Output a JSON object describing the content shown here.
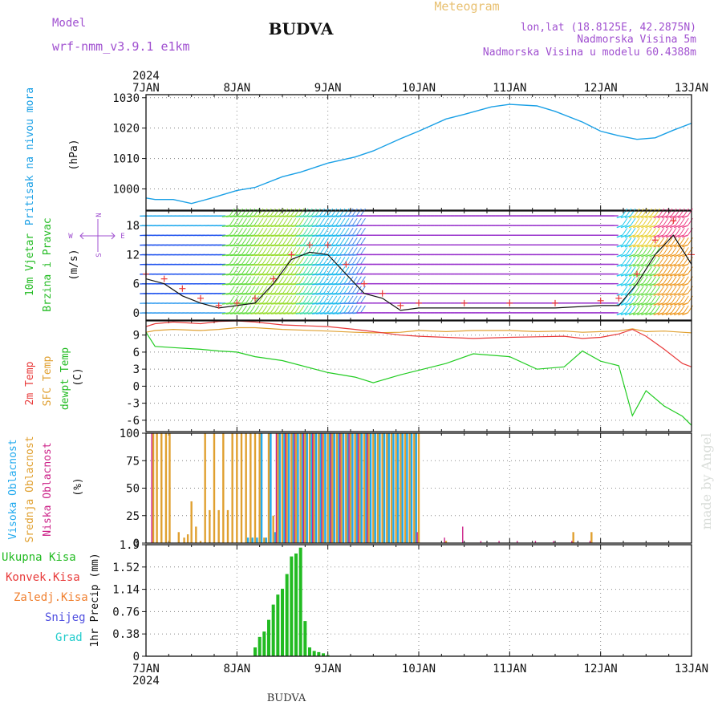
{
  "header": {
    "station": "BUDVA",
    "meteogram": "Meteogram",
    "model_label": "Model",
    "model_name": "wrf-nmm_v3.9.1  e1km",
    "lonlat": "lon,lat (18.8125E, 42.2875N)",
    "altitude": "Nadmorska Visina 5m",
    "model_altitude": "Nadmorska Visina u modelu 60.4388m",
    "footer": "BUDVA",
    "watermark": "made by Angel"
  },
  "colors": {
    "pressure": "#1aa0e6",
    "temp_2m": "#e83a3a",
    "temp_sfc": "#e0a030",
    "dewpoint": "#22cc22",
    "precip_total": "#22bb22",
    "cloud_high": "#22aaee",
    "cloud_mid": "#e0a030",
    "cloud_low": "#cc2288",
    "model_text": "#a050d0",
    "meteogram_text": "#e8c070",
    "wind_speed_line": "#111111",
    "wind_gust_marker": "#e83a3a"
  },
  "chart_data": [
    {
      "type": "line",
      "panel": "pressure",
      "ylabel_main": "Pritisak na nivou mora",
      "ylabel_unit": "(hPa)",
      "ylim": [
        993,
        1031
      ],
      "yticks": [
        1000,
        1010,
        1020,
        1030
      ],
      "x_year": "2024",
      "x_ticks": [
        "7JAN",
        "8JAN",
        "9JAN",
        "10JAN",
        "11JAN",
        "12JAN",
        "13JAN"
      ],
      "x": [
        0,
        0.1,
        0.3,
        0.5,
        0.7,
        1.0,
        1.2,
        1.5,
        1.7,
        2.0,
        2.3,
        2.5,
        2.8,
        3.0,
        3.3,
        3.5,
        3.8,
        4.0,
        4.3,
        4.5,
        4.8,
        5.0,
        5.2,
        5.4,
        5.6,
        5.8,
        6.0
      ],
      "series": [
        {
          "key": "slp",
          "values": [
            997,
            996.5,
            996.5,
            995.2,
            996.8,
            999.5,
            1000.5,
            1004,
            1005.5,
            1008.5,
            1010.5,
            1012.5,
            1016.5,
            1019,
            1023,
            1024.5,
            1027,
            1027.8,
            1027.3,
            1025.5,
            1022,
            1019,
            1017.5,
            1016.3,
            1016.8,
            1019.3,
            1021.6
          ]
        }
      ],
      "grid": true
    },
    {
      "type": "barbs",
      "panel": "wind",
      "ylabel_main": "10m Vjetar",
      "ylabel_sub": "Brzina i Pravac",
      "ylabel_unit": "(m/s)",
      "compass_n": "N",
      "compass_s": "S",
      "compass_w": "W",
      "compass_e": "E",
      "ylim": [
        -1.5,
        21
      ],
      "yticks": [
        0,
        6,
        12,
        18
      ],
      "x": [
        0,
        0.2,
        0.4,
        0.6,
        0.8,
        1.0,
        1.2,
        1.4,
        1.6,
        1.8,
        2.0,
        2.2,
        2.4,
        2.6,
        2.8,
        3.0,
        3.5,
        4.0,
        4.5,
        5.0,
        5.2,
        5.4,
        5.6,
        5.8,
        6.0
      ],
      "series": [
        {
          "key": "speed",
          "values": [
            7,
            6,
            3.5,
            2,
            1,
            1.5,
            2,
            6,
            11,
            12.5,
            12,
            8,
            4,
            3,
            0.5,
            1,
            1,
            1,
            1,
            1.5,
            1.5,
            6,
            12,
            16,
            10
          ]
        },
        {
          "key": "gust",
          "values": [
            8,
            7,
            5,
            3,
            1.5,
            2,
            3,
            7,
            12,
            14,
            14,
            10,
            6,
            4,
            1.5,
            2,
            2,
            2,
            2,
            2.5,
            3,
            8,
            15,
            19,
            12
          ]
        }
      ]
    },
    {
      "type": "line",
      "panel": "temperature",
      "ylabel_2m": "2m Temp",
      "ylabel_sfc": "SFC Temp",
      "ylabel_dew": "dewpt Temp",
      "ylabel_unit": "(C)",
      "ylim": [
        -8,
        11.5
      ],
      "yticks": [
        -6,
        -3,
        0,
        3,
        6,
        9
      ],
      "x": [
        0,
        0.1,
        0.3,
        0.6,
        0.8,
        1.0,
        1.2,
        1.5,
        2.0,
        2.3,
        2.5,
        2.8,
        3.0,
        3.3,
        3.6,
        4.0,
        4.3,
        4.6,
        4.8,
        5.0,
        5.2,
        5.35,
        5.5,
        5.7,
        5.9,
        6.0
      ],
      "series": [
        {
          "key": "t2m",
          "values": [
            10.5,
            11,
            11.3,
            11,
            11.4,
            11.5,
            11.3,
            10.8,
            10.5,
            10,
            9.6,
            9,
            8.8,
            8.6,
            8.4,
            8.6,
            8.7,
            8.8,
            8.4,
            8.6,
            9.2,
            10,
            8.8,
            6.5,
            4,
            3.4
          ]
        },
        {
          "key": "tsfc",
          "values": [
            9.5,
            9.8,
            10,
            9.8,
            10,
            10.3,
            10.3,
            10,
            9.7,
            9.5,
            9.4,
            9.5,
            9.8,
            9.6,
            9.8,
            9.8,
            9.6,
            9.7,
            9.5,
            9.6,
            9.7,
            10.1,
            9.6,
            9.7,
            9.5,
            9.4
          ]
        },
        {
          "key": "dewpt",
          "values": [
            9.5,
            7,
            6.8,
            6.5,
            6.2,
            6,
            5.2,
            4.5,
            2.4,
            1.6,
            0.6,
            2.0,
            2.8,
            4.0,
            5.7,
            5.2,
            3.0,
            3.4,
            6.2,
            4.4,
            3.6,
            -5.2,
            -0.8,
            -3.5,
            -5.3,
            -6.9
          ]
        }
      ],
      "grid": true
    },
    {
      "type": "bar",
      "panel": "clouds",
      "ylabel_high": "Visoka Oblacnost",
      "ylabel_mid": "Srednja Oblacnost",
      "ylabel_low": "Niska Oblacnost",
      "ylabel_unit": "(%)",
      "ylim": [
        0,
        100
      ],
      "yticks": [
        0,
        25,
        50,
        75,
        100
      ],
      "x": [
        0.08,
        0.12,
        0.17,
        0.22,
        0.26,
        0.36,
        0.42,
        0.46,
        0.5,
        0.55,
        0.6,
        0.65,
        0.7,
        0.75,
        0.8,
        0.85,
        0.9,
        0.95,
        1.0,
        1.05,
        1.1,
        1.15,
        1.2,
        1.25,
        1.3,
        1.35,
        1.4,
        1.45,
        1.5,
        1.55,
        1.6,
        1.65,
        1.7,
        1.75,
        1.8,
        1.85,
        1.9,
        1.95,
        2.0,
        2.05,
        2.1,
        2.15,
        2.2,
        2.25,
        2.3,
        2.35,
        2.4,
        2.45,
        2.5,
        2.55,
        2.6,
        2.65,
        2.7,
        2.75,
        2.8,
        2.85,
        2.9,
        2.95,
        3.0,
        3.3,
        3.5,
        3.7,
        3.9,
        4.1,
        4.3,
        4.5,
        4.7,
        4.9,
        5.0
      ],
      "series": [
        {
          "key": "mid",
          "values": [
            100,
            100,
            100,
            100,
            100,
            10,
            5,
            8,
            38,
            15,
            2,
            100,
            30,
            100,
            30,
            100,
            30,
            100,
            100,
            100,
            100,
            100,
            100,
            100,
            5,
            100,
            25,
            100,
            100,
            100,
            100,
            100,
            100,
            100,
            100,
            100,
            100,
            100,
            100,
            100,
            100,
            100,
            100,
            100,
            100,
            100,
            100,
            100,
            100,
            100,
            100,
            100,
            100,
            100,
            100,
            100,
            100,
            100,
            100,
            2,
            0,
            0,
            0,
            0,
            0,
            0,
            10,
            10,
            0
          ]
        },
        {
          "key": "high",
          "values": [
            0,
            0,
            0,
            0,
            0,
            0,
            0,
            0,
            0,
            0,
            0,
            0,
            0,
            0,
            0,
            0,
            0,
            0,
            0,
            0,
            5,
            5,
            5,
            100,
            5,
            100,
            10,
            100,
            100,
            100,
            100,
            100,
            100,
            100,
            100,
            100,
            100,
            100,
            100,
            100,
            100,
            100,
            100,
            100,
            100,
            100,
            100,
            100,
            100,
            100,
            100,
            100,
            100,
            100,
            100,
            100,
            100,
            100,
            0,
            0,
            0,
            0,
            0,
            0,
            0,
            0,
            0,
            0,
            0
          ]
        },
        {
          "key": "low",
          "values": [
            100,
            0,
            0,
            0,
            0,
            0,
            0,
            0,
            0,
            0,
            0,
            0,
            0,
            0,
            0,
            0,
            0,
            0,
            0,
            0,
            0,
            0,
            0,
            0,
            0,
            0,
            0,
            100,
            0,
            100,
            0,
            100,
            0,
            100,
            0,
            100,
            0,
            100,
            0,
            100,
            0,
            100,
            0,
            100,
            0,
            100,
            0,
            100,
            0,
            0,
            0,
            0,
            0,
            0,
            0,
            0,
            0,
            0,
            10,
            5,
            15,
            2,
            2,
            2,
            2,
            2,
            2,
            2,
            0
          ]
        }
      ]
    },
    {
      "type": "bar",
      "panel": "precipitation",
      "legend": [
        "Ukupna  Kisa",
        "Konvek.Kisa",
        "Zaledj.Kisa",
        "Snijeg",
        "Grad"
      ],
      "legend_colors": [
        "#22bb22",
        "#e83a3a",
        "#f08030",
        "#5050e0",
        "#22cccc"
      ],
      "ylabel": "1hr Precip  (mm)",
      "ylim": [
        0,
        1.9
      ],
      "yticks": [
        0,
        0.38,
        0.76,
        1.14,
        1.52,
        1.9
      ],
      "ytick_labels": [
        "0",
        "0.38",
        "0.76",
        "1.14",
        "1.52",
        "1.9"
      ],
      "x": [
        1.2,
        1.25,
        1.3,
        1.35,
        1.4,
        1.45,
        1.5,
        1.55,
        1.6,
        1.65,
        1.7,
        1.75,
        1.8,
        1.85,
        1.9,
        1.95,
        2.0
      ],
      "series": [
        {
          "key": "total",
          "values": [
            0.15,
            0.33,
            0.42,
            0.62,
            0.88,
            1.05,
            1.15,
            1.4,
            1.7,
            1.75,
            1.85,
            0.6,
            0.15,
            0.09,
            0.07,
            0.05,
            0.02
          ]
        }
      ]
    }
  ]
}
